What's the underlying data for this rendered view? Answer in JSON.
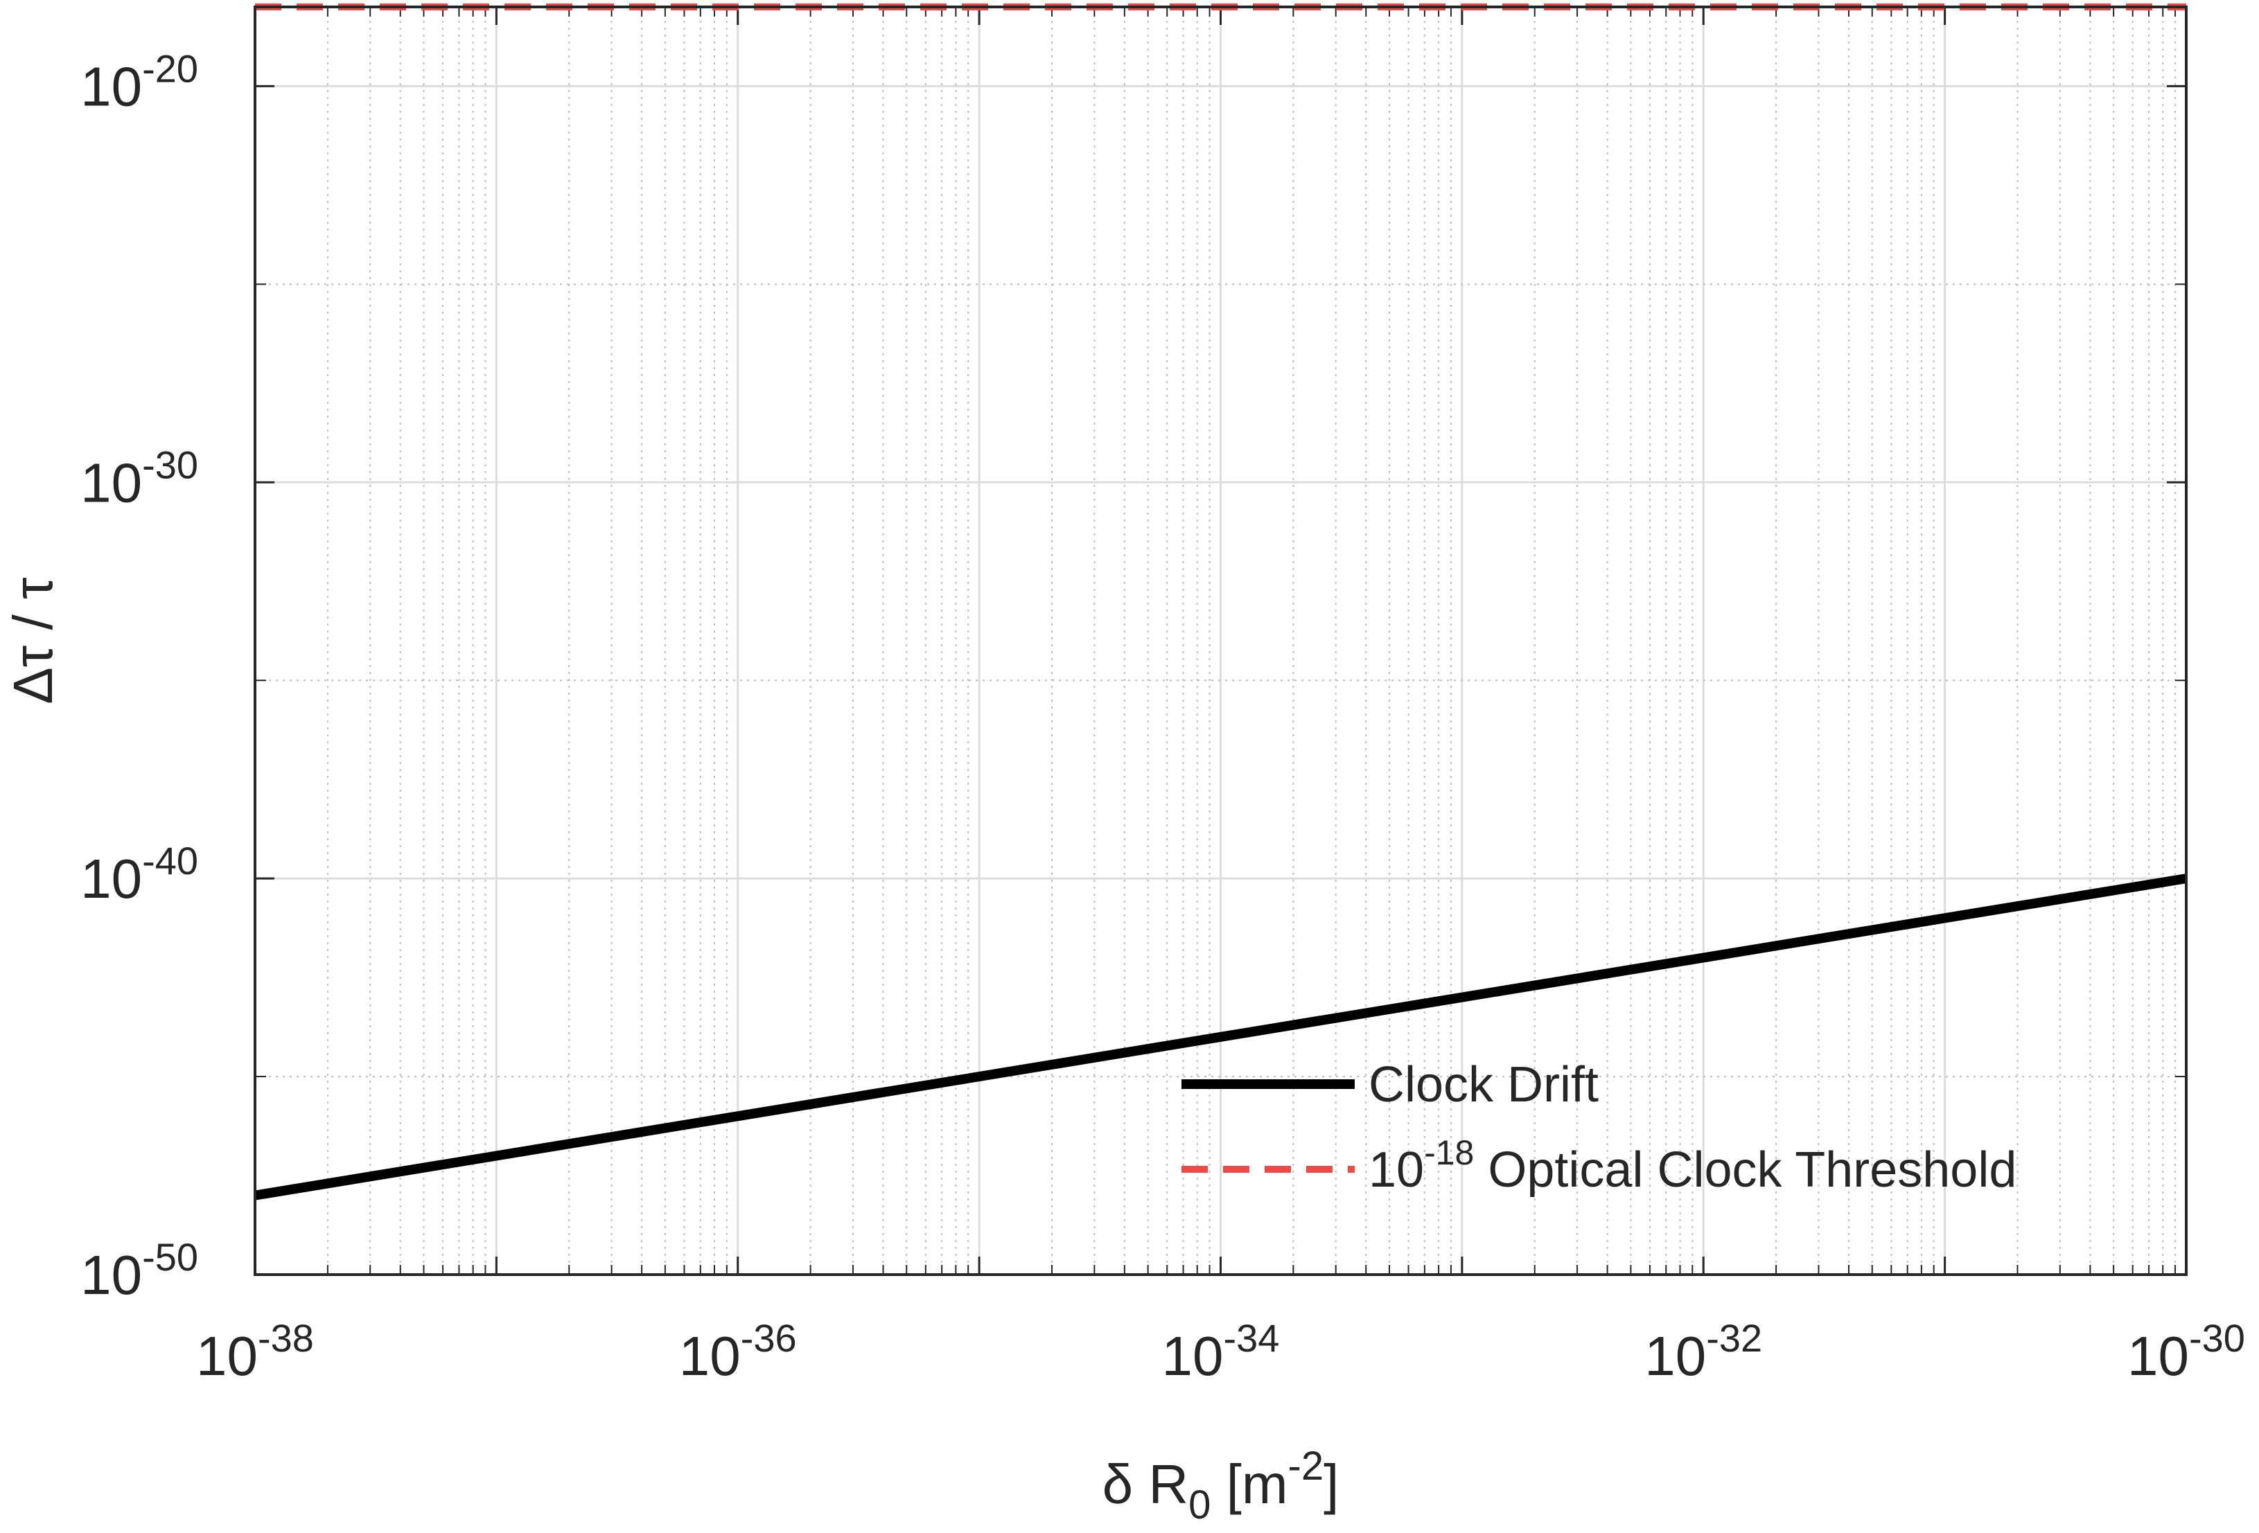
{
  "chart_data": {
    "type": "line",
    "xscale": "log",
    "yscale": "log",
    "xlim": [
      1e-38,
      1e-30
    ],
    "ylim": [
      1e-50,
      1e-18
    ],
    "grid": true,
    "legend_position": "bottom-right",
    "xlabel": {
      "prefix": "δ R",
      "sub": "0",
      "mid": " [m",
      "sup": "-2",
      "suffix": "]"
    },
    "ylabel": "Δτ / τ",
    "x_ticks": [
      {
        "base": "10",
        "exp": "-38",
        "value": 1e-38
      },
      {
        "base": "10",
        "exp": "-36",
        "value": 1e-36
      },
      {
        "base": "10",
        "exp": "-34",
        "value": 1e-34
      },
      {
        "base": "10",
        "exp": "-32",
        "value": 1e-32
      },
      {
        "base": "10",
        "exp": "-30",
        "value": 1e-30
      }
    ],
    "y_ticks": [
      {
        "base": "10",
        "exp": "-50",
        "value": 1e-50
      },
      {
        "base": "10",
        "exp": "-40",
        "value": 1e-40
      },
      {
        "base": "10",
        "exp": "-30",
        "value": 1e-30
      },
      {
        "base": "10",
        "exp": "-20",
        "value": 1e-20
      }
    ],
    "series": [
      {
        "name": "Clock Drift",
        "color": "#000000",
        "style": "solid",
        "x": [
          1e-38,
          1e-30
        ],
        "y": [
          1e-48,
          1e-40
        ]
      },
      {
        "name_parts": {
          "base": "10",
          "exp": "-18",
          "text": " Optical Clock Threshold"
        },
        "color": "#f04848",
        "style": "dashed",
        "x": [
          1e-38,
          1e-30
        ],
        "y": [
          1e-18,
          1e-18
        ]
      }
    ]
  }
}
